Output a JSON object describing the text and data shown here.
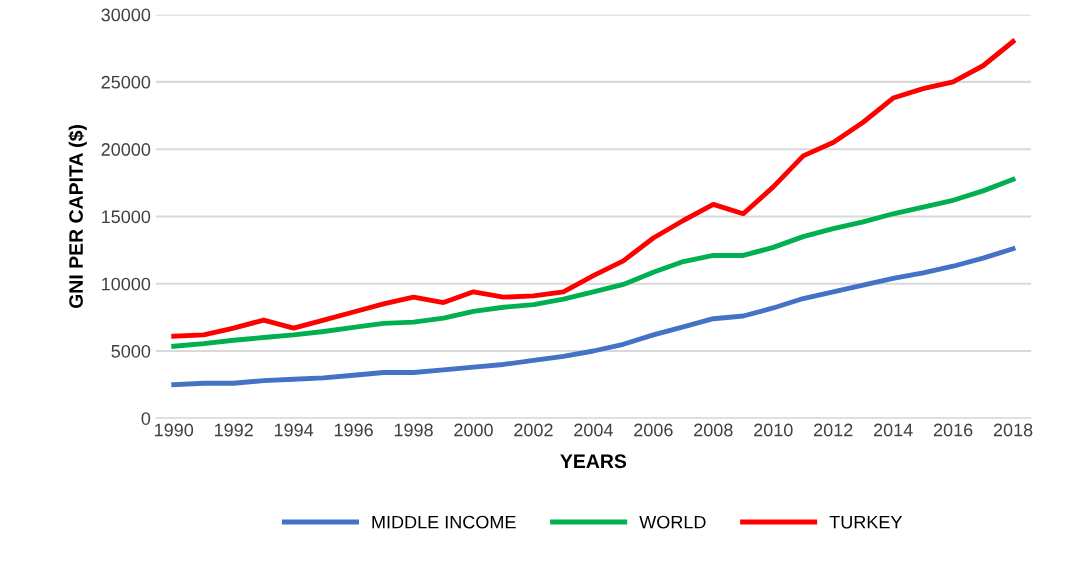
{
  "chart_data": {
    "type": "line",
    "xlabel": "YEARS",
    "ylabel": "GNI PER CAPITA ($)",
    "x": [
      1990,
      1991,
      1992,
      1993,
      1994,
      1995,
      1996,
      1997,
      1998,
      1999,
      2000,
      2001,
      2002,
      2003,
      2004,
      2005,
      2006,
      2007,
      2008,
      2009,
      2010,
      2011,
      2012,
      2013,
      2014,
      2015,
      2016,
      2017,
      2018
    ],
    "series": [
      {
        "name": "MIDDLE INCOME",
        "color": "#4472c4",
        "values": [
          2500,
          2600,
          2600,
          2800,
          2900,
          3000,
          3200,
          3400,
          3400,
          3600,
          3800,
          4000,
          4300,
          4600,
          5000,
          5500,
          6200,
          6800,
          7400,
          7600,
          8200,
          8900,
          9400,
          9900,
          10400,
          10800,
          11300,
          11900,
          12600
        ]
      },
      {
        "name": "WORLD",
        "color": "#00b050",
        "values": [
          5350,
          5550,
          5800,
          6000,
          6200,
          6450,
          6750,
          7050,
          7150,
          7450,
          7950,
          8250,
          8450,
          8850,
          9400,
          9950,
          10850,
          11650,
          12100,
          12100,
          12700,
          13500,
          14100,
          14600,
          15200,
          15700,
          16200,
          16900,
          17750
        ]
      },
      {
        "name": "TURKEY",
        "color": "#ff0000",
        "values": [
          6100,
          6200,
          6700,
          7300,
          6700,
          7300,
          7900,
          8500,
          9000,
          8600,
          9400,
          9000,
          9100,
          9400,
          10600,
          11700,
          13400,
          14700,
          15900,
          15200,
          17200,
          19500,
          20500,
          22000,
          23800,
          24500,
          25000,
          26200,
          28000
        ]
      }
    ],
    "xlim": [
      1989.4,
      2018.6
    ],
    "xticks": [
      1990,
      1992,
      1994,
      1996,
      1998,
      2000,
      2002,
      2004,
      2006,
      2008,
      2010,
      2012,
      2014,
      2016,
      2018
    ],
    "ylim": [
      0,
      30000
    ],
    "yticks": [
      0,
      5000,
      10000,
      15000,
      20000,
      25000,
      30000
    ],
    "grid": "y",
    "legend": "bottom",
    "marker": "none",
    "line_style": "solid"
  }
}
